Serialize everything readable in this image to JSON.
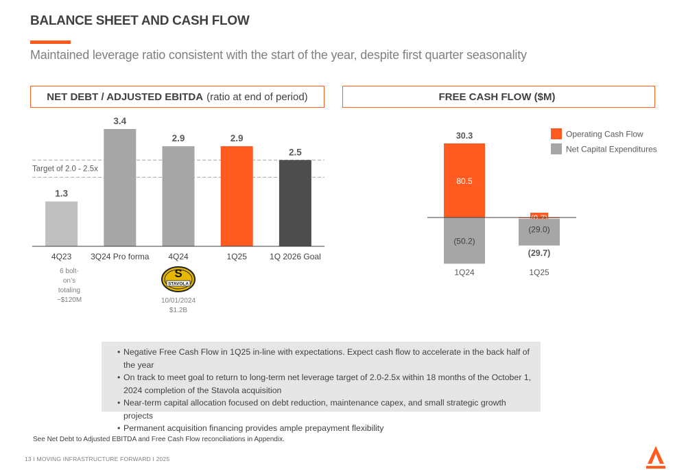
{
  "title": "BALANCE SHEET AND CASH FLOW",
  "subtitle": "Maintained leverage ratio consistent with the start of the year, despite first quarter seasonality",
  "colors": {
    "accent": "#ff5a1f",
    "gray_light": "#bfbfbf",
    "gray_mid": "#a6a6a6",
    "gray_dark": "#4d4d4d"
  },
  "left_panel": {
    "title_bold": "NET DEBT / ADJUSTED EBITDA",
    "title_rest": "(ratio at end of period)"
  },
  "right_panel": {
    "title": "FREE CASH FLOW ($M)"
  },
  "chart_data": [
    {
      "type": "bar",
      "title": "NET DEBT / ADJUSTED EBITDA (ratio at end of period)",
      "categories": [
        "4Q23",
        "3Q24 Pro forma",
        "4Q24",
        "1Q25",
        "1Q 2026 Goal"
      ],
      "values": [
        1.3,
        3.4,
        2.9,
        2.9,
        2.5
      ],
      "value_labels": [
        "1.3",
        "3.4",
        "2.9",
        "2.9",
        "2.5"
      ],
      "bar_colors": [
        "#bfbfbf",
        "#a6a6a6",
        "#a6a6a6",
        "#ff5a1f",
        "#4d4d4d"
      ],
      "target_band": [
        2.0,
        2.5
      ],
      "target_label": "Target of 2.0 - 2.5x",
      "ylim": [
        0,
        3.7
      ],
      "annotations": {
        "first_category_note": [
          "6 bolt-",
          "on’s",
          "totaling",
          "~$120M"
        ],
        "acquisition_logo": "STAVOLA",
        "acquisition_note": [
          "10/01/2024",
          "$1.2B"
        ]
      }
    },
    {
      "type": "bar",
      "title": "FREE CASH FLOW ($M)",
      "categories": [
        "1Q24",
        "1Q25"
      ],
      "series": [
        {
          "name": "Operating Cash Flow",
          "values": [
            80.5,
            -0.7
          ],
          "labels": [
            "80.5",
            "(0.7)"
          ],
          "color": "#ff5a1f"
        },
        {
          "name": "Net Capital Expenditures",
          "values": [
            -50.2,
            -29.0
          ],
          "labels": [
            "(50.2)",
            "(29.0)"
          ],
          "color": "#a6a6a6"
        }
      ],
      "totals": [
        30.3,
        -29.7
      ],
      "total_labels": [
        "30.3",
        "(29.7)"
      ],
      "legend_position": "top-right",
      "ylim": [
        -50.2,
        80.5
      ]
    }
  ],
  "notes": [
    "Negative Free Cash Flow in 1Q25 in-line with expectations. Expect cash flow to accelerate in the back half of the year",
    "On track to meet goal to return to long-term net leverage target of 2.0-2.5x  within 18 months of the October 1, 2024 completion of the Stavola acquisition",
    "Near-term capital allocation focused on debt reduction, maintenance capex, and small strategic growth projects",
    "Permanent acquisition financing provides ample prepayment flexibility"
  ],
  "footnote": "See Net Debt to Adjusted EBITDA and Free Cash Flow reconciliations in Appendix.",
  "footer": "13  I   MOVING INFRASTRUCTURE FORWARD   I   2025"
}
